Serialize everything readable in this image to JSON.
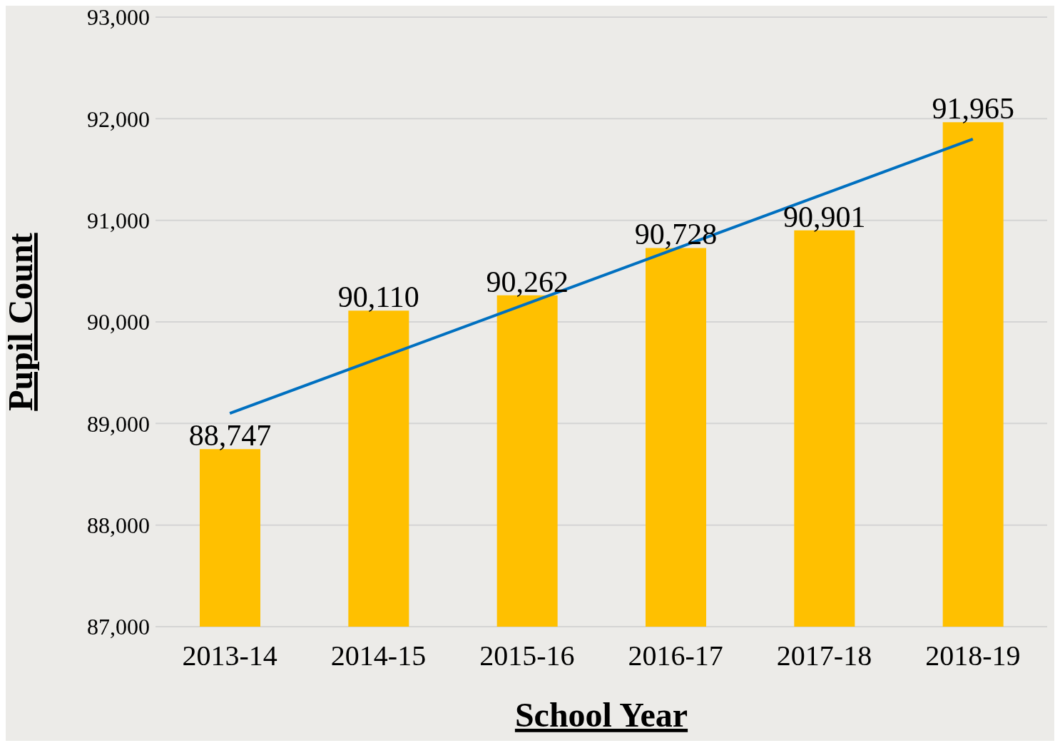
{
  "chart_data": {
    "type": "bar",
    "xlabel": "School Year",
    "ylabel": "Pupil Count",
    "categories": [
      "2013-14",
      "2014-15",
      "2015-16",
      "2016-17",
      "2017-18",
      "2018-19"
    ],
    "series": [
      {
        "color": "#ffc000",
        "values": [
          88747,
          90110,
          90262,
          90728,
          90901,
          91965
        ],
        "value_labels": [
          "88,747",
          "90,110",
          "90,262",
          "90,728",
          "90,901",
          "91,965"
        ]
      },
      {
        "type": "line",
        "color": "#0070c0",
        "x": [
          "2013-14",
          "2018-19"
        ],
        "values": [
          89100,
          91800
        ],
        "marker": "none"
      }
    ],
    "ylim": [
      87000,
      93000
    ],
    "yticks": [
      {
        "value": 87000,
        "label": "87,000"
      },
      {
        "value": 88000,
        "label": "88,000"
      },
      {
        "value": 89000,
        "label": "89,000"
      },
      {
        "value": 90000,
        "label": "90,000"
      },
      {
        "value": 91000,
        "label": "91,000"
      },
      {
        "value": 92000,
        "label": "92,000"
      },
      {
        "value": 93000,
        "label": "93,000"
      }
    ],
    "grid": "y"
  }
}
